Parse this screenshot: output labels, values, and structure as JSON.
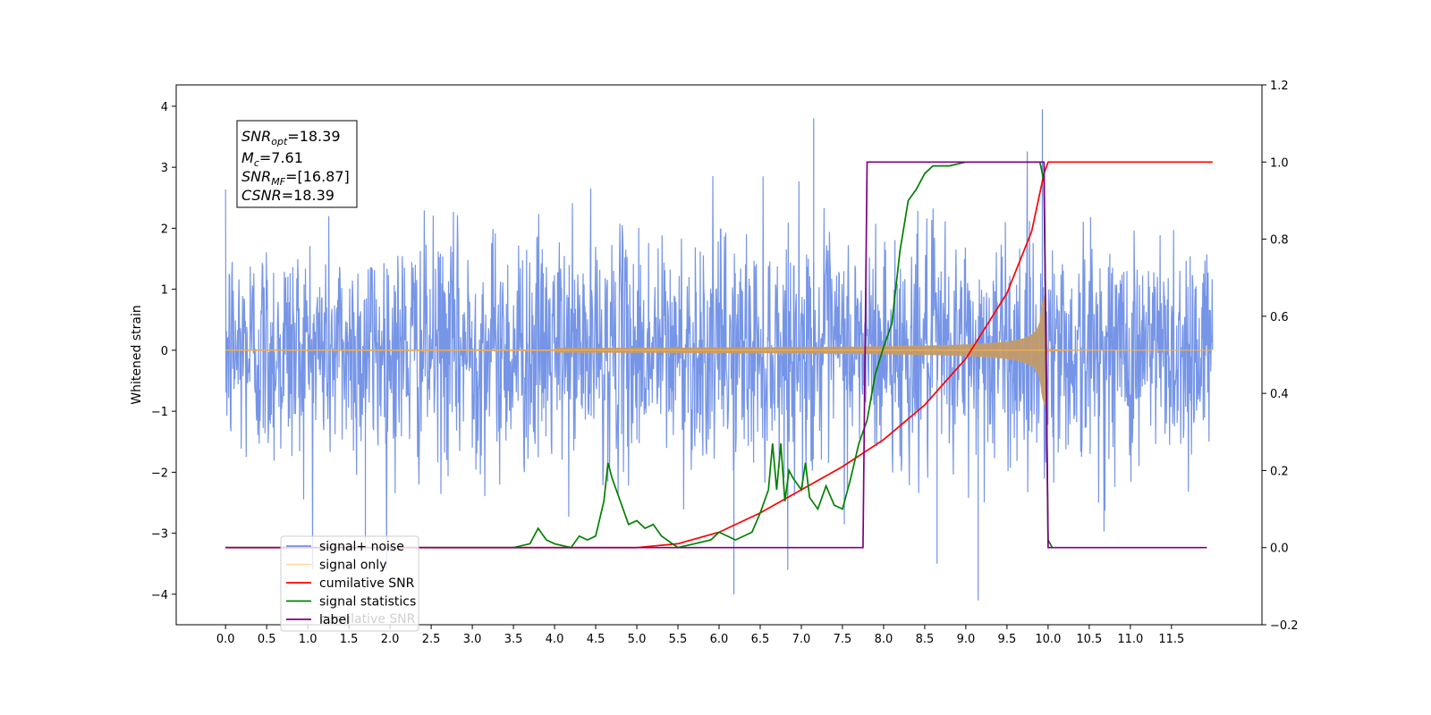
{
  "chart_data": {
    "type": "line",
    "title": "",
    "xlabel": "",
    "ylabel": "Whitened strain",
    "xlim": [
      -0.6,
      12.6
    ],
    "ylim": [
      -4.5,
      4.35
    ],
    "y2lim": [
      -0.2,
      1.2
    ],
    "grid": false,
    "legend_position": "bottom-left",
    "x_ticks": [
      "0.0",
      "0.5",
      "1.0",
      "1.5",
      "2.0",
      "2.5",
      "3.0",
      "3.5",
      "4.0",
      "4.5",
      "5.0",
      "5.5",
      "6.0",
      "6.5",
      "7.0",
      "7.5",
      "8.0",
      "8.5",
      "9.0",
      "9.5",
      "10.0",
      "10.5",
      "11.0",
      "11.5"
    ],
    "y_ticks": [
      "−4",
      "−3",
      "−2",
      "−1",
      "0",
      "1",
      "2",
      "3",
      "4"
    ],
    "y2_ticks": [
      "−0.2",
      "0.0",
      "0.2",
      "0.4",
      "0.6",
      "0.8",
      "1.0",
      "1.2"
    ],
    "annotation": {
      "snr_opt": "=18.39",
      "mc": "=7.61",
      "snr_mf": "=[16.87]",
      "csnr": "=18.39"
    },
    "series": [
      {
        "name": "signal+ noise",
        "color": "#6f8fe6",
        "axis": "left",
        "kind": "noise",
        "description_values": {
          "x_start": 0.0,
          "x_end": 12.0,
          "std": 1.0,
          "max": 3.95,
          "min": -4.1
        }
      },
      {
        "name": "signal only",
        "color": "#ffb347",
        "axis": "left",
        "kind": "chirp",
        "description_values": {
          "x_merger": 9.95,
          "peak_amplitude": 1.15
        }
      },
      {
        "name": "cumilative SNR",
        "color": "#ff0000",
        "axis": "right",
        "x": [
          5.0,
          5.5,
          6.0,
          6.5,
          7.0,
          7.5,
          8.0,
          8.5,
          9.0,
          9.5,
          9.8,
          9.95,
          10.0,
          12.0
        ],
        "y": [
          0.0,
          0.01,
          0.04,
          0.09,
          0.15,
          0.21,
          0.28,
          0.37,
          0.49,
          0.66,
          0.82,
          0.97,
          1.0,
          1.0
        ]
      },
      {
        "name": "signal statistics",
        "color": "#008000",
        "axis": "right",
        "x": [
          0.0,
          3.5,
          3.7,
          3.8,
          3.9,
          4.0,
          4.2,
          4.3,
          4.4,
          4.5,
          4.6,
          4.65,
          4.7,
          4.8,
          4.9,
          5.0,
          5.1,
          5.2,
          5.3,
          5.5,
          5.7,
          5.9,
          6.0,
          6.2,
          6.4,
          6.5,
          6.6,
          6.65,
          6.7,
          6.75,
          6.8,
          6.85,
          6.9,
          7.0,
          7.05,
          7.1,
          7.2,
          7.3,
          7.4,
          7.5,
          7.6,
          7.7,
          7.8,
          7.9,
          8.0,
          8.1,
          8.2,
          8.3,
          8.4,
          8.5,
          8.6,
          8.8,
          9.0,
          9.5,
          9.9,
          9.95,
          10.0,
          10.05
        ],
        "y": [
          0.0,
          0.0,
          0.01,
          0.05,
          0.02,
          0.01,
          0.0,
          0.03,
          0.02,
          0.03,
          0.12,
          0.22,
          0.18,
          0.12,
          0.06,
          0.07,
          0.05,
          0.06,
          0.03,
          0.0,
          0.01,
          0.02,
          0.04,
          0.02,
          0.04,
          0.09,
          0.15,
          0.27,
          0.15,
          0.27,
          0.12,
          0.2,
          0.18,
          0.15,
          0.22,
          0.13,
          0.1,
          0.16,
          0.11,
          0.1,
          0.18,
          0.27,
          0.33,
          0.45,
          0.52,
          0.58,
          0.77,
          0.9,
          0.93,
          0.97,
          0.99,
          0.99,
          1.0,
          1.0,
          1.0,
          0.95,
          0.02,
          0.0
        ]
      },
      {
        "name": "label",
        "color": "#800080",
        "axis": "right",
        "x": [
          0.0,
          7.75,
          7.8,
          9.95,
          10.0,
          11.93
        ],
        "y": [
          0.0,
          0.0,
          1.0,
          1.0,
          0.0,
          0.0
        ]
      }
    ],
    "legend_hidden_text": "cumilative SNR"
  }
}
